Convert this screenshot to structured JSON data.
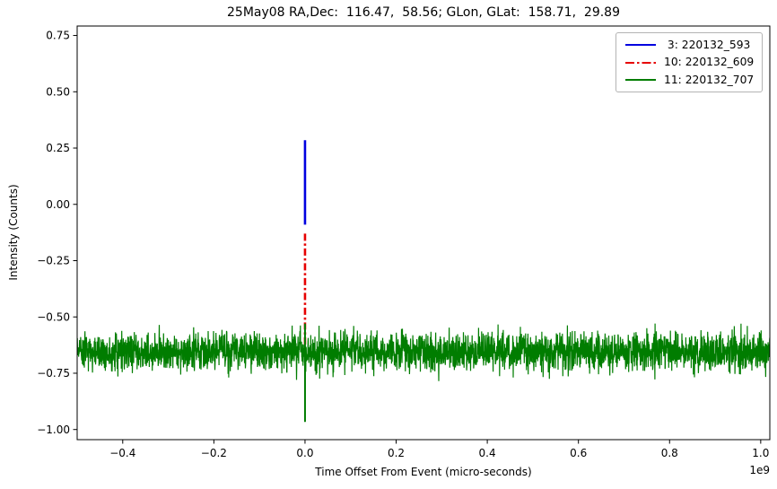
{
  "title": "25May08 RA,Dec:  116.47,  58.56; GLon, GLat:  158.71,  29.89",
  "axes": {
    "xlabel": "Time Offset From Event (micro-seconds)",
    "ylabel": "Intensity (Counts)",
    "offset_text": "1e9"
  },
  "legend": {
    "entries": [
      {
        "label": " 3: 220132_593",
        "color": "#0000e0",
        "dash": ""
      },
      {
        "label": "10: 220132_609",
        "color": "#e60000",
        "dash": "10 3 2.5 3"
      },
      {
        "label": "11: 220132_707",
        "color": "#007d00",
        "dash": ""
      }
    ]
  },
  "chart_data": {
    "type": "line",
    "title": "25May08 RA,Dec:  116.47,  58.56; GLon, GLat:  158.71,  29.89",
    "xlabel": "Time Offset From Event (micro-seconds)",
    "ylabel": "Intensity (Counts)",
    "x_unit_multiplier": "1e9",
    "xlim": [
      -0.5,
      1.02
    ],
    "ylim": [
      -1.045,
      0.792
    ],
    "xticks": [
      -0.4,
      -0.2,
      0.0,
      0.2,
      0.4,
      0.6,
      0.8,
      1.0
    ],
    "yticks": [
      0.75,
      0.5,
      0.25,
      0.0,
      -0.25,
      -0.5,
      -0.75,
      -1.0
    ],
    "grid": false,
    "legend_position": "upper-right",
    "series": [
      {
        "name": "3: 220132_593",
        "color": "#0000e0",
        "linestyle": "solid",
        "geometry": "vertical-spike",
        "x": 0.0,
        "y_min": -0.09,
        "y_max": 0.285,
        "linewidth": 2.6
      },
      {
        "name": "10: 220132_609",
        "color": "#e60000",
        "linestyle": "dash-dot",
        "geometry": "vertical-spike",
        "x": 0.0,
        "y_min": -0.64,
        "y_max": -0.13,
        "linewidth": 2.6,
        "dash_pattern": "8 3 2.5 3"
      },
      {
        "name": "11: 220132_707",
        "color": "#007d00",
        "linestyle": "solid",
        "geometry": "noise-trace",
        "baseline": -0.655,
        "noise_std": 0.042,
        "x_start": -0.5,
        "x_end": 1.02,
        "n_points": 3200,
        "seed": 20080525,
        "linewidth": 1.2,
        "event_spike": {
          "x": 0.0,
          "y_min": -0.966,
          "y_max": -0.53
        }
      }
    ]
  }
}
